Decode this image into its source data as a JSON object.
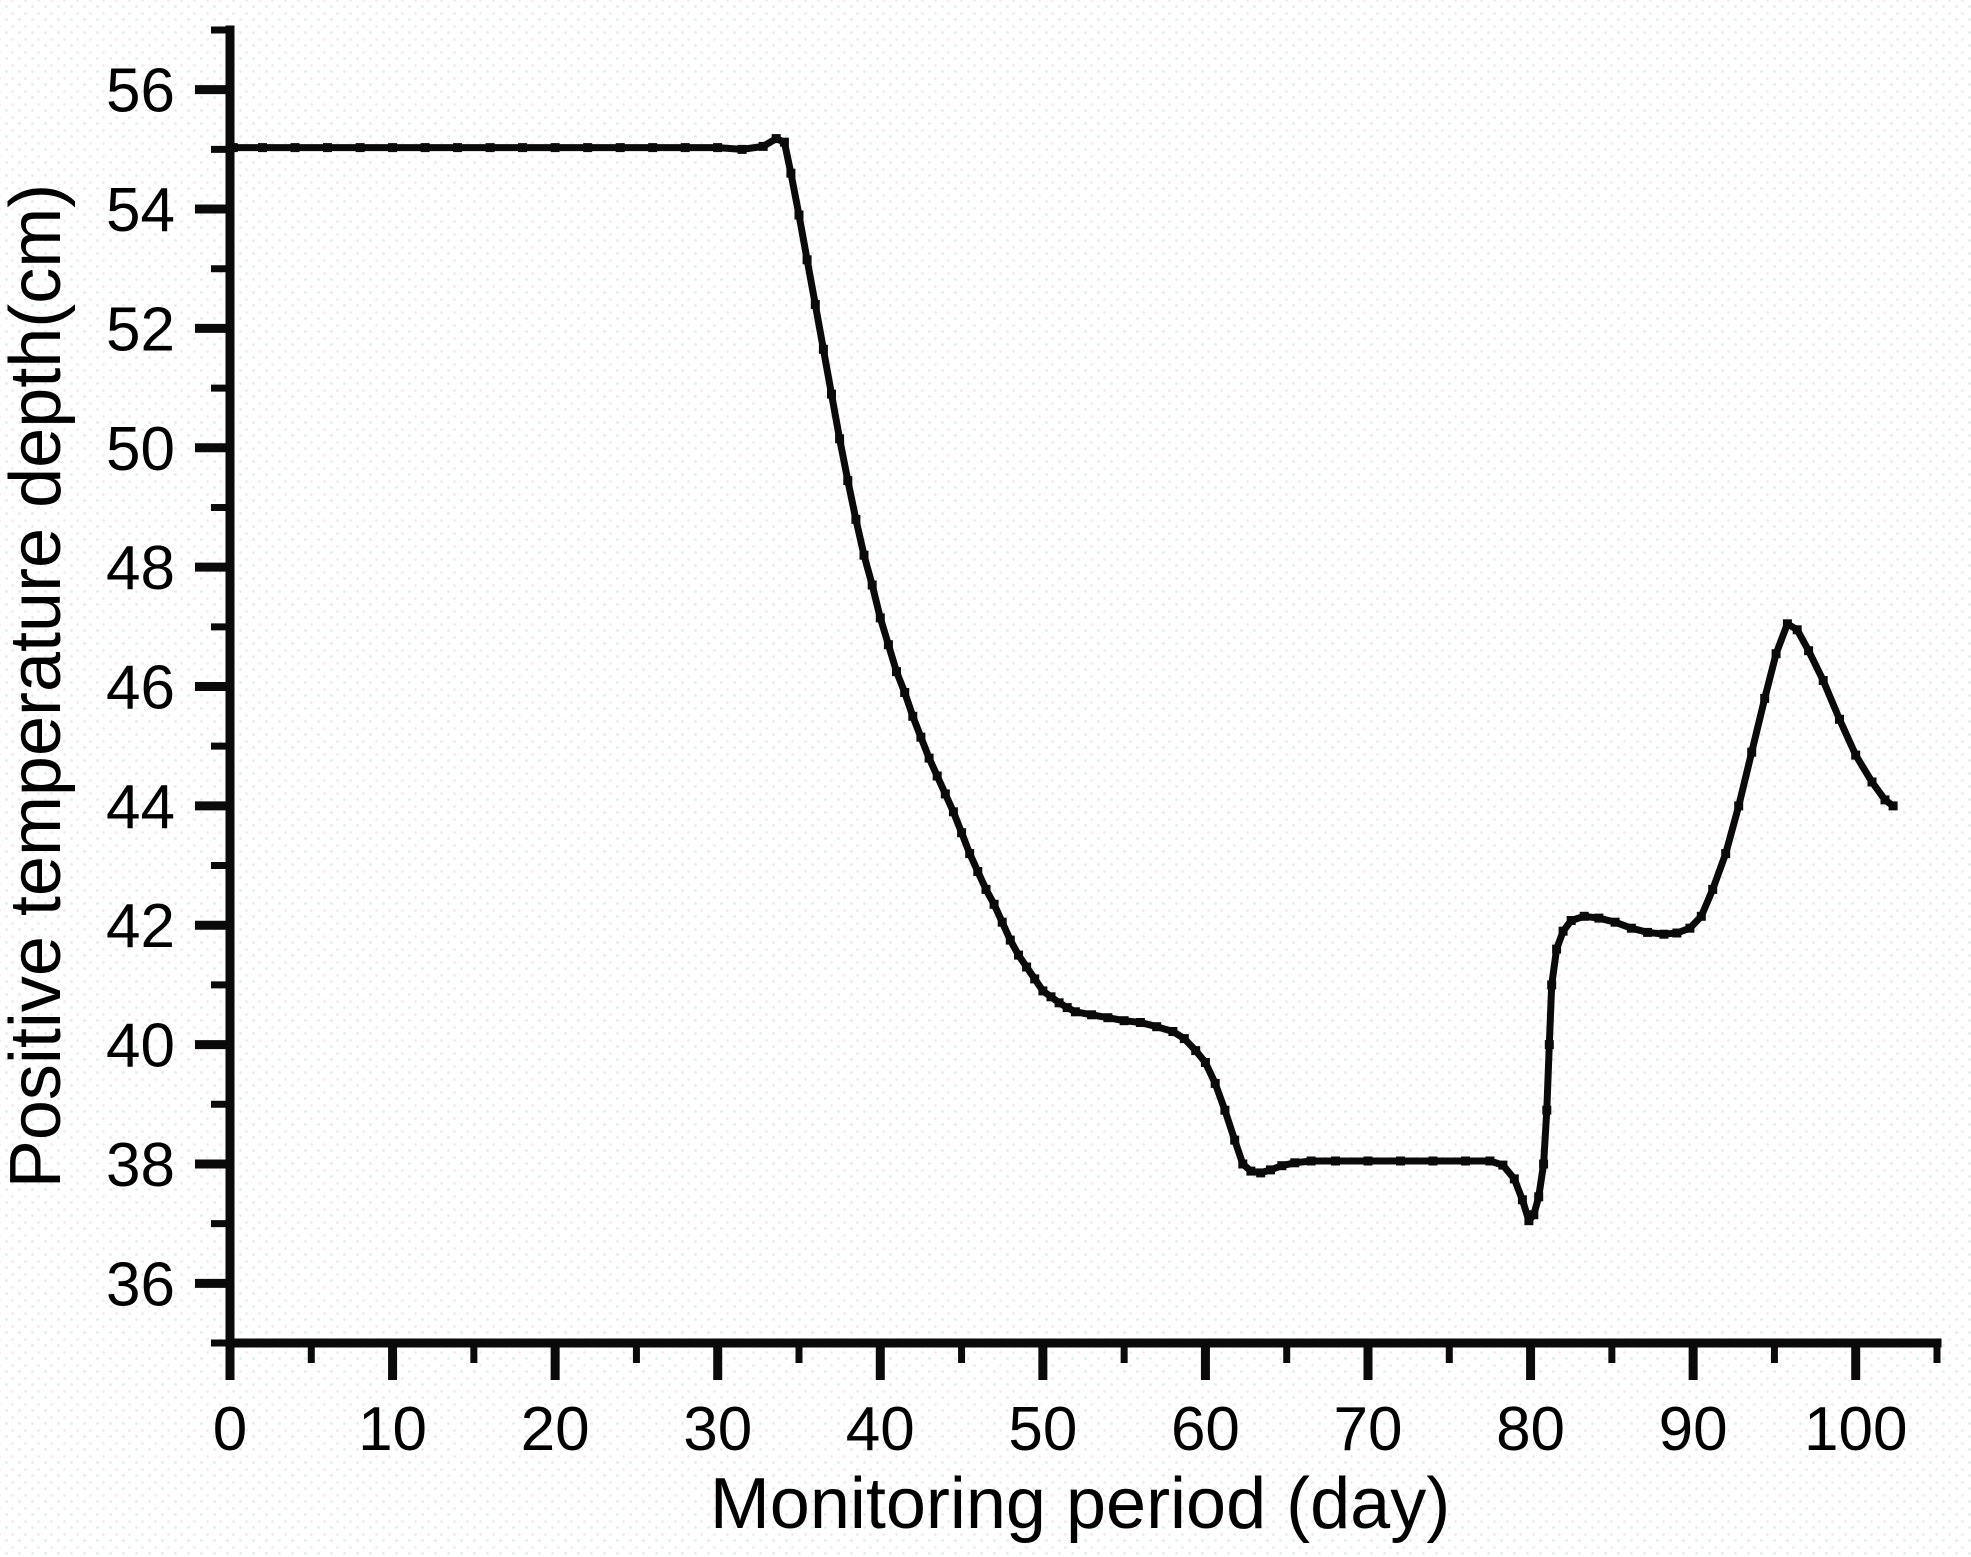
{
  "chart_data": {
    "type": "line",
    "title": "",
    "xlabel": "Monitoring period (day)",
    "ylabel": "Positive temperature depth(cm)",
    "xlim": [
      0,
      105
    ],
    "ylim": [
      35,
      57
    ],
    "grid": false,
    "legend": "none",
    "line_color": "#0a0a0a",
    "x_major_ticks": [
      0,
      10,
      20,
      30,
      40,
      50,
      60,
      70,
      80,
      90,
      100
    ],
    "x_minor_ticks": [
      5,
      15,
      25,
      35,
      45,
      55,
      65,
      75,
      85,
      95,
      105
    ],
    "y_major_ticks": [
      36,
      38,
      40,
      42,
      44,
      46,
      48,
      50,
      52,
      54,
      56
    ],
    "y_minor_ticks": [
      35,
      37,
      39,
      41,
      43,
      45,
      47,
      49,
      51,
      53,
      55,
      57
    ],
    "series": [
      {
        "name": "positive-temperature-depth",
        "points": [
          [
            0.2,
            55.03
          ],
          [
            2,
            55.03
          ],
          [
            4,
            55.03
          ],
          [
            6,
            55.03
          ],
          [
            8,
            55.03
          ],
          [
            10,
            55.03
          ],
          [
            12,
            55.03
          ],
          [
            14,
            55.03
          ],
          [
            16,
            55.03
          ],
          [
            18,
            55.03
          ],
          [
            20,
            55.03
          ],
          [
            22,
            55.03
          ],
          [
            24,
            55.03
          ],
          [
            26,
            55.03
          ],
          [
            28,
            55.03
          ],
          [
            30,
            55.03
          ],
          [
            31.5,
            55.0
          ],
          [
            32.8,
            55.05
          ],
          [
            33.6,
            55.18
          ],
          [
            34.1,
            55.12
          ],
          [
            34.5,
            54.6
          ],
          [
            35,
            53.9
          ],
          [
            35.5,
            53.15
          ],
          [
            36,
            52.4
          ],
          [
            36.5,
            51.65
          ],
          [
            37,
            50.9
          ],
          [
            37.5,
            50.15
          ],
          [
            38,
            49.45
          ],
          [
            38.5,
            48.8
          ],
          [
            39,
            48.2
          ],
          [
            39.5,
            47.7
          ],
          [
            40,
            47.15
          ],
          [
            40.5,
            46.7
          ],
          [
            41,
            46.25
          ],
          [
            41.5,
            45.9
          ],
          [
            42,
            45.5
          ],
          [
            42.5,
            45.15
          ],
          [
            43,
            44.8
          ],
          [
            43.5,
            44.5
          ],
          [
            44,
            44.2
          ],
          [
            44.5,
            43.9
          ],
          [
            45,
            43.55
          ],
          [
            45.5,
            43.2
          ],
          [
            46,
            42.9
          ],
          [
            46.5,
            42.6
          ],
          [
            47,
            42.35
          ],
          [
            47.5,
            42.05
          ],
          [
            48,
            41.75
          ],
          [
            48.5,
            41.5
          ],
          [
            49,
            41.3
          ],
          [
            49.5,
            41.1
          ],
          [
            50,
            40.9
          ],
          [
            50.5,
            40.8
          ],
          [
            51,
            40.7
          ],
          [
            51.5,
            40.62
          ],
          [
            52,
            40.55
          ],
          [
            53,
            40.5
          ],
          [
            54,
            40.45
          ],
          [
            55,
            40.4
          ],
          [
            56,
            40.37
          ],
          [
            57,
            40.3
          ],
          [
            58,
            40.22
          ],
          [
            58.7,
            40.1
          ],
          [
            59.4,
            39.9
          ],
          [
            60,
            39.7
          ],
          [
            60.6,
            39.35
          ],
          [
            61.2,
            38.9
          ],
          [
            61.8,
            38.4
          ],
          [
            62.3,
            38.0
          ],
          [
            62.8,
            37.88
          ],
          [
            63.4,
            37.85
          ],
          [
            64,
            37.9
          ],
          [
            64.7,
            37.97
          ],
          [
            65.5,
            38.02
          ],
          [
            66.5,
            38.05
          ],
          [
            68,
            38.05
          ],
          [
            70,
            38.05
          ],
          [
            72,
            38.05
          ],
          [
            74,
            38.05
          ],
          [
            76,
            38.05
          ],
          [
            77.5,
            38.05
          ],
          [
            78.3,
            37.98
          ],
          [
            79,
            37.75
          ],
          [
            79.5,
            37.4
          ],
          [
            79.9,
            37.05
          ],
          [
            80.2,
            37.15
          ],
          [
            80.5,
            37.45
          ],
          [
            80.8,
            38.0
          ],
          [
            81.0,
            38.9
          ],
          [
            81.15,
            40.0
          ],
          [
            81.3,
            41.0
          ],
          [
            81.6,
            41.6
          ],
          [
            82,
            41.9
          ],
          [
            82.5,
            42.08
          ],
          [
            83.3,
            42.15
          ],
          [
            84.2,
            42.12
          ],
          [
            85.2,
            42.05
          ],
          [
            86.2,
            41.95
          ],
          [
            87.2,
            41.88
          ],
          [
            88.2,
            41.85
          ],
          [
            89,
            41.87
          ],
          [
            89.8,
            41.95
          ],
          [
            90.5,
            42.15
          ],
          [
            91.2,
            42.6
          ],
          [
            92,
            43.2
          ],
          [
            92.8,
            44.0
          ],
          [
            93.6,
            44.9
          ],
          [
            94.4,
            45.8
          ],
          [
            95.1,
            46.55
          ],
          [
            95.8,
            47.05
          ],
          [
            96.4,
            46.95
          ],
          [
            97.1,
            46.6
          ],
          [
            98,
            46.1
          ],
          [
            99,
            45.45
          ],
          [
            100,
            44.85
          ],
          [
            101,
            44.4
          ],
          [
            101.8,
            44.1
          ],
          [
            102.3,
            44.0
          ]
        ]
      }
    ]
  }
}
